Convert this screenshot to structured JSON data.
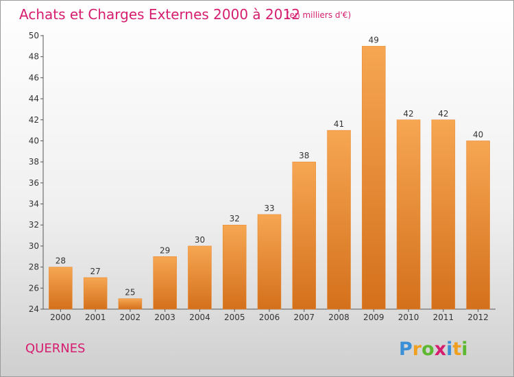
{
  "chart_data": {
    "type": "bar",
    "title": "Achats et Charges Externes 2000 à 2012",
    "subtitle": "(en milliers d'€)",
    "categories": [
      "2000",
      "2001",
      "2002",
      "2003",
      "2004",
      "2005",
      "2006",
      "2007",
      "2008",
      "2009",
      "2010",
      "2011",
      "2012"
    ],
    "values": [
      28,
      27,
      25,
      29,
      30,
      32,
      33,
      38,
      41,
      49,
      42,
      42,
      40
    ],
    "ylim": [
      24,
      50
    ],
    "yticks": [
      24,
      26,
      28,
      30,
      32,
      34,
      36,
      38,
      40,
      42,
      44,
      46,
      48,
      50
    ],
    "grid": false,
    "bar_color": "#f08f2e"
  },
  "town": "QUERNES",
  "logo": {
    "letters": [
      "P",
      "r",
      "o",
      "x",
      "i",
      "t",
      "i"
    ],
    "colors": [
      "#3a8fd6",
      "#f0a020",
      "#5cb82e",
      "#d61c6e",
      "#3a8fd6",
      "#f0a020",
      "#5cb82e"
    ]
  }
}
